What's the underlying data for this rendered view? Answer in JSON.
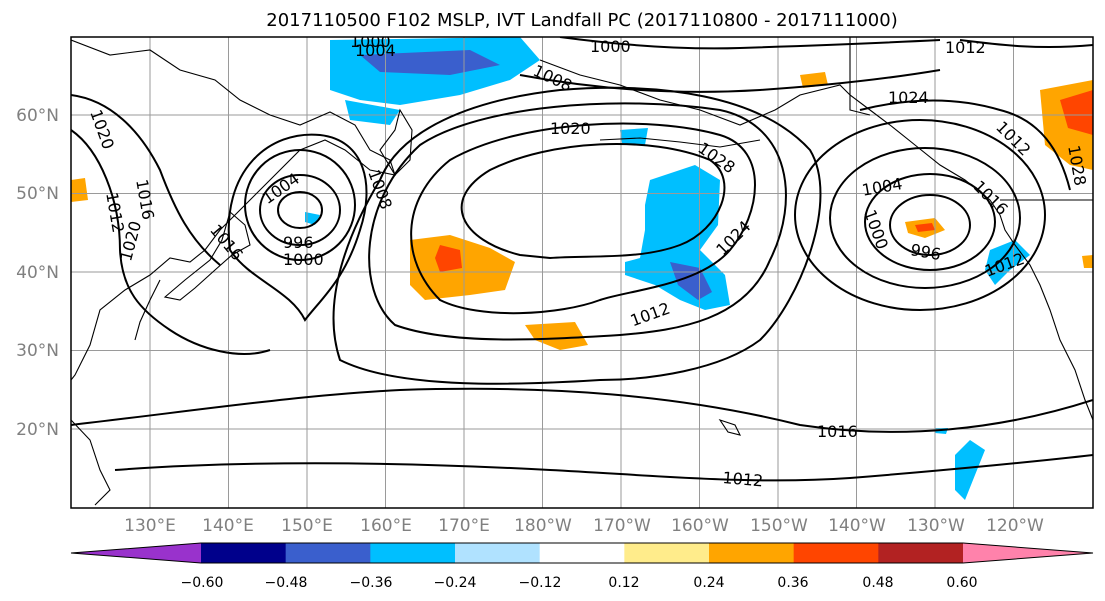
{
  "title": "2017110500 F102 MSLP, IVT Landfall PC (2017110800 - 2017111000)",
  "map": {
    "lat_labels": [
      "60°N",
      "50°N",
      "40°N",
      "30°N",
      "20°N"
    ],
    "lon_labels": [
      "130°E",
      "140°E",
      "150°E",
      "160°E",
      "170°E",
      "180°W",
      "170°W",
      "160°W",
      "150°W",
      "140°W",
      "130°W",
      "120°W"
    ],
    "lat_values": [
      60,
      50,
      40,
      30,
      20
    ],
    "lon_values": [
      130,
      140,
      150,
      160,
      170,
      180,
      190,
      200,
      210,
      220,
      230,
      240
    ]
  },
  "isobar_labels": [
    "1000",
    "1004",
    "1000",
    "1008",
    "1012",
    "1020",
    "1020",
    "1016",
    "1012",
    "1020",
    "1004",
    "1008",
    "996",
    "1000",
    "1016",
    "1028",
    "1024",
    "1012",
    "1016",
    "1012",
    "1004",
    "1000",
    "996",
    "1012",
    "1024",
    "1028",
    "1012",
    "1016"
  ],
  "colorbar": {
    "tick_labels": [
      "−0.60",
      "−0.48",
      "−0.36",
      "−0.24",
      "−0.12",
      "0.12",
      "0.24",
      "0.36",
      "0.48",
      "0.60"
    ],
    "colors": [
      "#9932cc",
      "#00008b",
      "#3a5fcd",
      "#00bfff",
      "#b0e2ff",
      "#ffffff",
      "#ffec8b",
      "#ffa500",
      "#ff4500",
      "#b22222",
      "#ff82ab"
    ]
  }
}
